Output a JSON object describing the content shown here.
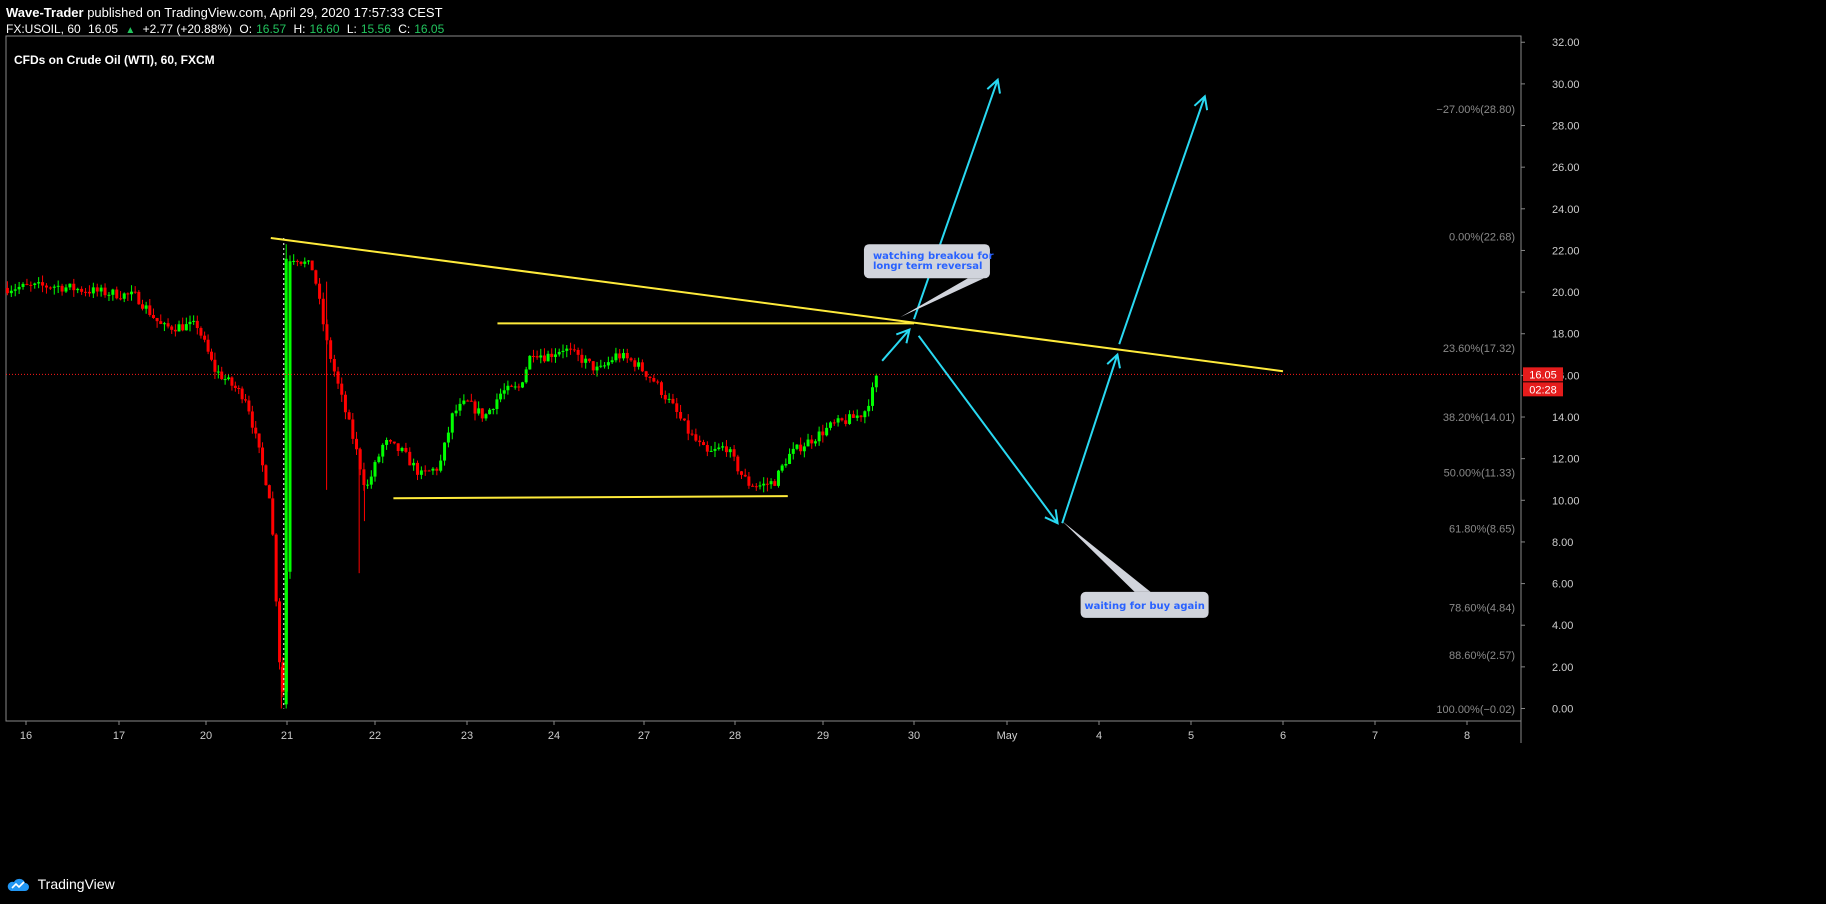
{
  "header": {
    "author": "Wave-Trader",
    "published_text": "published on TradingView.com, April 29, 2020 17:57:33 CEST",
    "symbol": "FX:USOIL, 60",
    "last": "16.05",
    "change": "+2.77 (+20.88%)",
    "o_label": "O:",
    "o_val": "16.57",
    "h_label": "H:",
    "h_val": "16.60",
    "l_label": "L:",
    "l_val": "15.56",
    "c_label": "C:",
    "c_val": "16.05"
  },
  "chart_title": "CFDs on Crude Oil (WTI), 60, FXCM",
  "footer": {
    "brand": "TradingView"
  },
  "colors": {
    "background": "#000000",
    "up": "#00ff00",
    "down": "#ff0000",
    "trendline": "#ffeb3b",
    "arrow": "#29d9f2",
    "price_line": "#ff1a1a",
    "axis_text": "#cccccc"
  },
  "chart_data": {
    "type": "candlestick",
    "ylim": [
      -0.6,
      32.3
    ],
    "y_ticks": [
      "0.00",
      "2.00",
      "4.00",
      "6.00",
      "8.00",
      "10.00",
      "12.00",
      "14.00",
      "16.00",
      "18.00",
      "20.00",
      "22.00",
      "24.00",
      "26.00",
      "28.00",
      "30.00",
      "32.00"
    ],
    "x_ticks": [
      {
        "label": "16",
        "x": 0
      },
      {
        "label": "17",
        "x": 1
      },
      {
        "label": "20",
        "x": 2
      },
      {
        "label": "21",
        "x": 3
      },
      {
        "label": "22",
        "x": 4
      },
      {
        "label": "23",
        "x": 5
      },
      {
        "label": "24",
        "x": 6
      },
      {
        "label": "27",
        "x": 7
      },
      {
        "label": "28",
        "x": 8
      },
      {
        "label": "29",
        "x": 9
      },
      {
        "label": "30",
        "x": 10
      },
      {
        "label": "May",
        "x": 11
      },
      {
        "label": "4",
        "x": 12
      },
      {
        "label": "5",
        "x": 13
      },
      {
        "label": "6",
        "x": 14
      },
      {
        "label": "7",
        "x": 15
      },
      {
        "label": "8",
        "x": 16
      }
    ],
    "price_label": "16.05",
    "countdown_label": "02:28",
    "current_price": 16.05,
    "fib_levels": [
      {
        "label": "−27.00%(28.80)",
        "y": 28.8
      },
      {
        "label": "0.00%(22.68)",
        "y": 22.68
      },
      {
        "label": "23.60%(17.32)",
        "y": 17.32
      },
      {
        "label": "38.20%(14.01)",
        "y": 14.01
      },
      {
        "label": "50.00%(11.33)",
        "y": 11.33
      },
      {
        "label": "61.80%(8.65)",
        "y": 8.65
      },
      {
        "label": "78.60%(4.84)",
        "y": 4.84
      },
      {
        "label": "88.60%(2.57)",
        "y": 2.57
      },
      {
        "label": "100.00%(−0.02)",
        "y": -0.02
      }
    ],
    "anchors": [
      {
        "x": -0.2,
        "y": 20.2
      },
      {
        "x": 0.3,
        "y": 20.3
      },
      {
        "x": 0.8,
        "y": 20.0
      },
      {
        "x": 1.2,
        "y": 19.8
      },
      {
        "x": 1.5,
        "y": 18.3
      },
      {
        "x": 1.9,
        "y": 18.4
      },
      {
        "x": 2.1,
        "y": 16.3
      },
      {
        "x": 2.5,
        "y": 14.9
      },
      {
        "x": 2.65,
        "y": 12.4
      },
      {
        "x": 2.8,
        "y": 10.0
      },
      {
        "x": 2.92,
        "y": 1.5
      },
      {
        "x": 2.98,
        "y": 0.2
      },
      {
        "x": 3.02,
        "y": 21.6
      },
      {
        "x": 3.1,
        "y": 21.7
      },
      {
        "x": 3.3,
        "y": 21.1
      },
      {
        "x": 3.45,
        "y": 17.6
      },
      {
        "x": 3.6,
        "y": 15.2
      },
      {
        "x": 3.75,
        "y": 13.0
      },
      {
        "x": 3.9,
        "y": 10.5
      },
      {
        "x": 4.1,
        "y": 12.8
      },
      {
        "x": 4.3,
        "y": 12.3
      },
      {
        "x": 4.5,
        "y": 11.2
      },
      {
        "x": 4.7,
        "y": 11.6
      },
      {
        "x": 4.85,
        "y": 14.2
      },
      {
        "x": 5.0,
        "y": 14.7
      },
      {
        "x": 5.2,
        "y": 14.0
      },
      {
        "x": 5.4,
        "y": 15.2
      },
      {
        "x": 5.6,
        "y": 15.4
      },
      {
        "x": 5.75,
        "y": 17.2
      },
      {
        "x": 5.9,
        "y": 16.9
      },
      {
        "x": 6.1,
        "y": 17.3
      },
      {
        "x": 6.3,
        "y": 16.8
      },
      {
        "x": 6.5,
        "y": 16.2
      },
      {
        "x": 6.7,
        "y": 17.0
      },
      {
        "x": 6.9,
        "y": 16.6
      },
      {
        "x": 7.1,
        "y": 15.8
      },
      {
        "x": 7.3,
        "y": 14.6
      },
      {
        "x": 7.5,
        "y": 13.2
      },
      {
        "x": 7.7,
        "y": 12.2
      },
      {
        "x": 7.9,
        "y": 12.6
      },
      {
        "x": 8.05,
        "y": 11.4
      },
      {
        "x": 8.15,
        "y": 10.8
      },
      {
        "x": 8.3,
        "y": 10.7
      },
      {
        "x": 8.45,
        "y": 10.9
      },
      {
        "x": 8.6,
        "y": 12.1
      },
      {
        "x": 8.75,
        "y": 12.6
      },
      {
        "x": 8.9,
        "y": 13.0
      },
      {
        "x": 9.1,
        "y": 13.6
      },
      {
        "x": 9.3,
        "y": 13.9
      },
      {
        "x": 9.45,
        "y": 14.2
      },
      {
        "x": 9.55,
        "y": 15.3
      },
      {
        "x": 9.62,
        "y": 16.3
      }
    ],
    "drawings": {
      "resistance_trendline": [
        {
          "x": 2.8,
          "y": 22.6
        },
        {
          "x": 14.0,
          "y": 16.2
        }
      ],
      "upper_horizontal": [
        {
          "x": 5.35,
          "y": 18.5
        },
        {
          "x": 10.0,
          "y": 18.5
        }
      ],
      "lower_horizontal": [
        {
          "x": 4.2,
          "y": 10.1
        },
        {
          "x": 8.6,
          "y": 10.2
        }
      ],
      "arrows": [
        {
          "from": {
            "x": 9.65,
            "y": 16.7
          },
          "to": {
            "x": 9.95,
            "y": 18.2
          }
        },
        {
          "from": {
            "x": 10.0,
            "y": 18.7
          },
          "to": {
            "x": 10.9,
            "y": 30.2
          }
        },
        {
          "from": {
            "x": 10.05,
            "y": 17.9
          },
          "to": {
            "x": 11.55,
            "y": 8.9
          }
        },
        {
          "from": {
            "x": 11.6,
            "y": 8.9
          },
          "to": {
            "x": 12.2,
            "y": 17.0
          }
        },
        {
          "from": {
            "x": 12.22,
            "y": 17.5
          },
          "to": {
            "x": 13.15,
            "y": 29.4
          }
        }
      ]
    },
    "callouts": [
      {
        "text": [
          "watching breakou for",
          "longr term reversal"
        ],
        "at": {
          "x": 9.45,
          "y": 22.3
        },
        "tip": {
          "x": 9.85,
          "y": 18.8
        }
      },
      {
        "text": [
          "waiting for buy again"
        ],
        "at": {
          "x": 11.8,
          "y": 5.6
        },
        "tip": {
          "x": 11.6,
          "y": 9.0
        }
      }
    ]
  }
}
